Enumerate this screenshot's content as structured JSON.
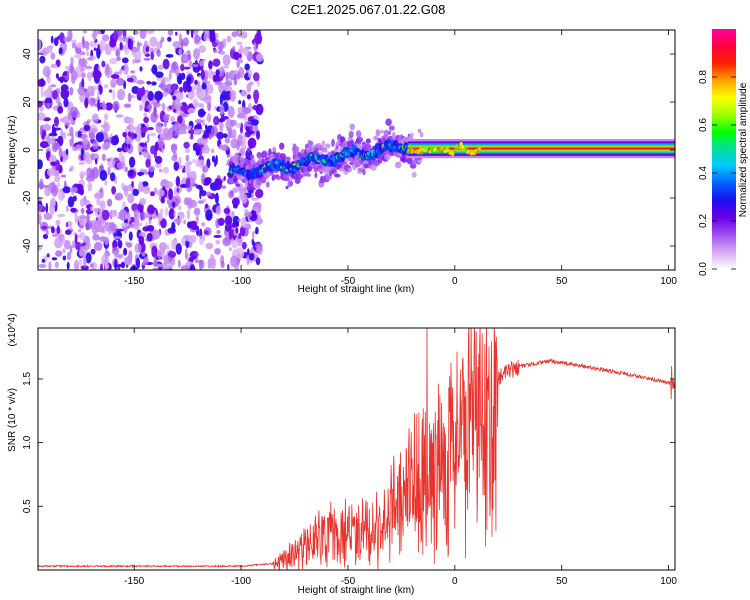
{
  "title": "C2E1.2025.067.01.22.G08",
  "colors": {
    "snr_line": "#e8322b",
    "spectrum_scatter": "#7a1ff0",
    "spectrum_faint": "#d9b8f5"
  },
  "chart_data": [
    {
      "type": "heatmap",
      "name": "spectrogram",
      "xlabel": "Height of straight line (km)",
      "ylabel": "Frequency (Hz)",
      "xlim": [
        -195,
        103
      ],
      "ylim": [
        -50,
        50
      ],
      "xticks": [
        -150,
        -100,
        -50,
        0,
        50,
        100
      ],
      "yticks": [
        -40,
        -20,
        0,
        20,
        40
      ],
      "colorbar": {
        "label": "Normalized spectral amplitude",
        "range": [
          0,
          1
        ],
        "ticks": [
          0.0,
          0.2,
          0.4,
          0.6,
          0.8
        ],
        "colormap": [
          "#ffffff",
          "#d6a8f5",
          "#a050f0",
          "#6a00e8",
          "#1a10f0",
          "#0060ff",
          "#00c8ff",
          "#00e0a0",
          "#00ff00",
          "#a0ff00",
          "#ffff00",
          "#ffa000",
          "#ff2000",
          "#ff0040",
          "#ff00a0"
        ]
      },
      "features": {
        "noise_region_x": [
          -195,
          -95
        ],
        "signal_start_x": -105,
        "signal_center_hz_at_start": -10,
        "signal_center_hz_at_-20km": 2,
        "carrier_hz": 0
      }
    },
    {
      "type": "line",
      "name": "snr",
      "xlabel": "Height of straight line (km)",
      "ylabel": "SNR (10 * v/v)",
      "y_multiplier": "(x10^4)",
      "xlim": [
        -195,
        103
      ],
      "ylim": [
        0,
        1.9
      ],
      "xticks": [
        -150,
        -100,
        -50,
        0,
        50,
        100
      ],
      "yticks": [
        0.5,
        1.0,
        1.5
      ],
      "envelope_points": [
        [
          -195,
          0.03
        ],
        [
          -100,
          0.03
        ],
        [
          -85,
          0.05
        ],
        [
          -75,
          0.15
        ],
        [
          -65,
          0.3
        ],
        [
          -50,
          0.35
        ],
        [
          -35,
          0.45
        ],
        [
          -20,
          0.75
        ],
        [
          -10,
          0.95
        ],
        [
          0,
          1.15
        ],
        [
          10,
          1.35
        ],
        [
          20,
          1.5
        ],
        [
          30,
          1.6
        ],
        [
          45,
          1.64
        ],
        [
          60,
          1.6
        ],
        [
          80,
          1.54
        ],
        [
          100,
          1.47
        ]
      ],
      "spike": {
        "x": -13,
        "y": 1.9
      }
    }
  ]
}
